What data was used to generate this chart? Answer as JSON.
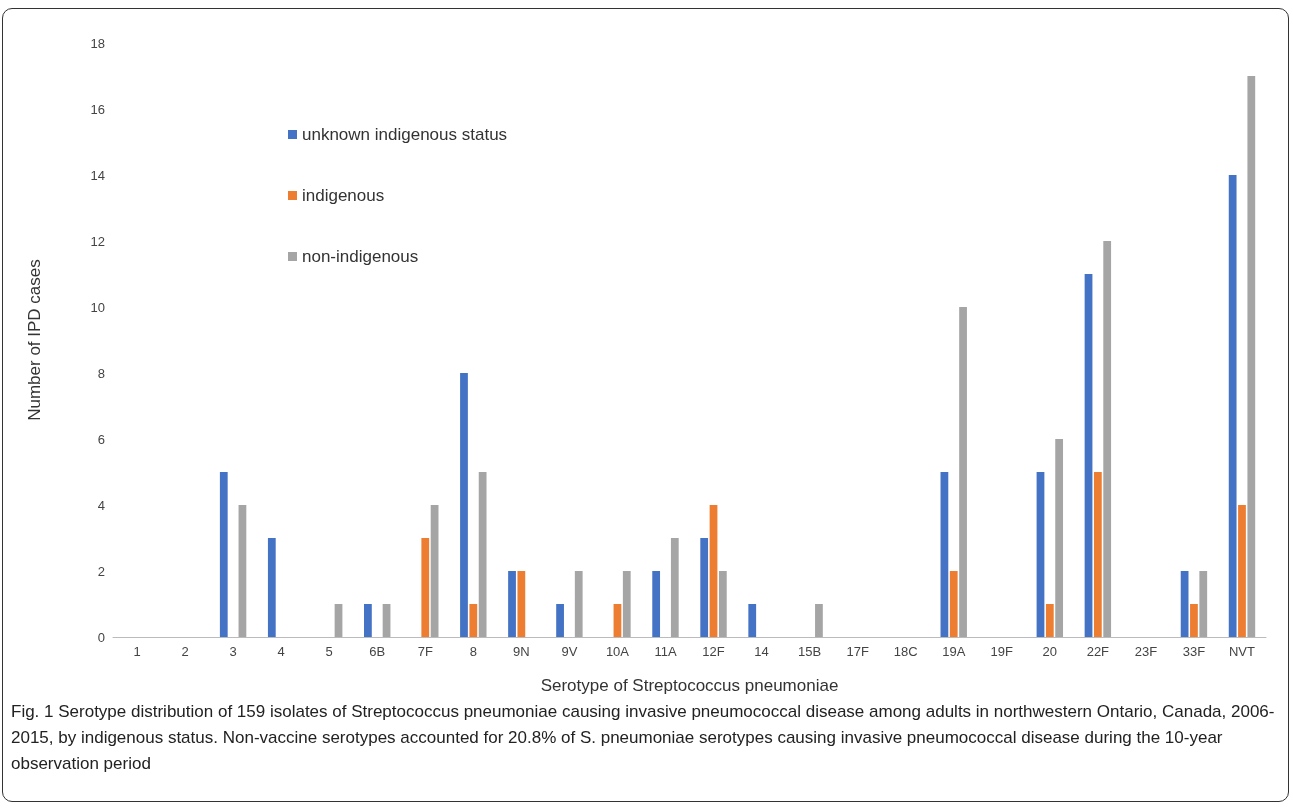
{
  "chart_data": {
    "type": "bar",
    "xlabel": "Serotype of Streptococcus pneumoniae",
    "ylabel": "Number of IPD cases",
    "categories": [
      "1",
      "2",
      "3",
      "4",
      "5",
      "6B",
      "7F",
      "8",
      "9N",
      "9V",
      "10A",
      "11A",
      "12F",
      "14",
      "15B",
      "17F",
      "18C",
      "19A",
      "19F",
      "20",
      "22F",
      "23F",
      "33F",
      "NVT"
    ],
    "series": [
      {
        "name": "unknown indigenous status",
        "color": "#4472c4",
        "values": [
          0,
          0,
          5,
          3,
          0,
          1,
          0,
          8,
          2,
          1,
          0,
          2,
          3,
          1,
          0,
          0,
          0,
          5,
          0,
          5,
          11,
          0,
          2,
          14
        ]
      },
      {
        "name": "indigenous",
        "color": "#ed7d31",
        "values": [
          0,
          0,
          0,
          0,
          0,
          0,
          3,
          1,
          2,
          0,
          1,
          0,
          4,
          0,
          0,
          0,
          0,
          2,
          0,
          1,
          5,
          0,
          1,
          4
        ]
      },
      {
        "name": "non-indigenous",
        "color": "#a5a5a5",
        "values": [
          0,
          0,
          4,
          0,
          1,
          1,
          4,
          5,
          0,
          2,
          2,
          3,
          2,
          0,
          1,
          0,
          0,
          10,
          0,
          6,
          12,
          0,
          2,
          17
        ]
      }
    ],
    "ylim": [
      0,
      18
    ],
    "yticks": [
      0,
      2,
      4,
      6,
      8,
      10,
      12,
      14,
      16,
      18
    ],
    "grid": false,
    "legend": "top left",
    "annotations": [
      "Fig. 1 Serotype distribution of 159 isolates of Streptococcus pneumoniae causing invasive pneumococcal disease among adults in northwestern Ontario, Canada, 2006-2015, by indigenous status. Non-vaccine serotypes accounted for 20.8% of S. pneumoniae serotypes causing invasive pneumococcal disease during the 10-year observation period"
    ]
  }
}
